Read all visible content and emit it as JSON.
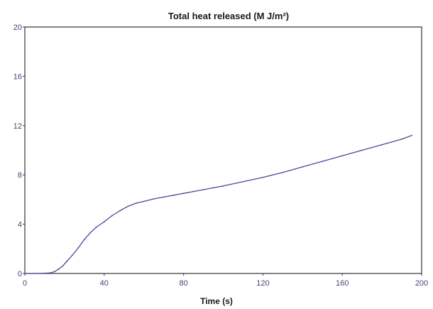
{
  "chart_data": {
    "type": "line",
    "title": "Total heat released (M J/m²)",
    "xlabel": "Time (s)",
    "ylabel": "",
    "xlim": [
      0,
      200
    ],
    "ylim": [
      0,
      20
    ],
    "xticks": [
      "0",
      "40",
      "80",
      "120",
      "160",
      "200"
    ],
    "yticks": [
      "0",
      "4",
      "8",
      "12",
      "16",
      "20"
    ],
    "grid": false,
    "line_color": "#4a4a9a",
    "axis_color": "#333333",
    "series": [
      {
        "x": [
          0,
          5,
          10,
          13,
          15,
          17,
          19,
          21,
          24,
          27,
          30,
          33,
          36,
          40,
          44,
          48,
          52,
          56,
          60,
          65,
          70,
          75,
          80,
          85,
          90,
          95,
          100,
          110,
          120,
          130,
          140,
          150,
          160,
          170,
          180,
          190,
          195
        ],
        "y": [
          0,
          0,
          0.02,
          0.05,
          0.15,
          0.35,
          0.6,
          0.95,
          1.5,
          2.1,
          2.75,
          3.3,
          3.75,
          4.2,
          4.7,
          5.1,
          5.45,
          5.7,
          5.85,
          6.05,
          6.2,
          6.35,
          6.5,
          6.65,
          6.8,
          6.95,
          7.1,
          7.45,
          7.8,
          8.2,
          8.65,
          9.1,
          9.55,
          10.0,
          10.45,
          10.9,
          11.2
        ]
      }
    ]
  }
}
